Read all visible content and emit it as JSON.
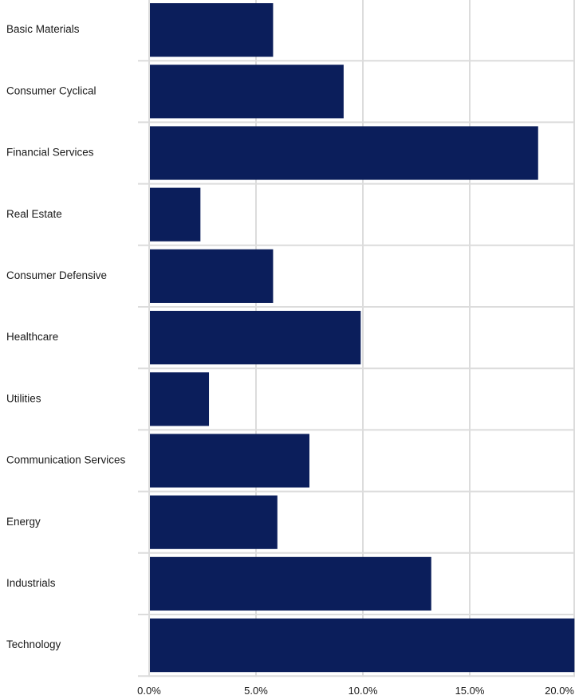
{
  "chart_data": {
    "type": "bar",
    "orientation": "horizontal",
    "categories": [
      "Basic Materials",
      "Consumer Cyclical",
      "Financial Services",
      "Real Estate",
      "Consumer Defensive",
      "Healthcare",
      "Utilities",
      "Communication Services",
      "Energy",
      "Industrials",
      "Technology"
    ],
    "values": [
      5.8,
      9.1,
      18.2,
      2.4,
      5.8,
      9.9,
      2.8,
      7.5,
      6.0,
      13.2,
      19.9
    ],
    "xlim": [
      0,
      20
    ],
    "xticks": [
      "0.0%",
      "5.0%",
      "10.0%",
      "15.0%",
      "20.0%"
    ],
    "bar_color": "#0b1e5b",
    "grid_color": "#dcdcdc",
    "grid": true
  }
}
